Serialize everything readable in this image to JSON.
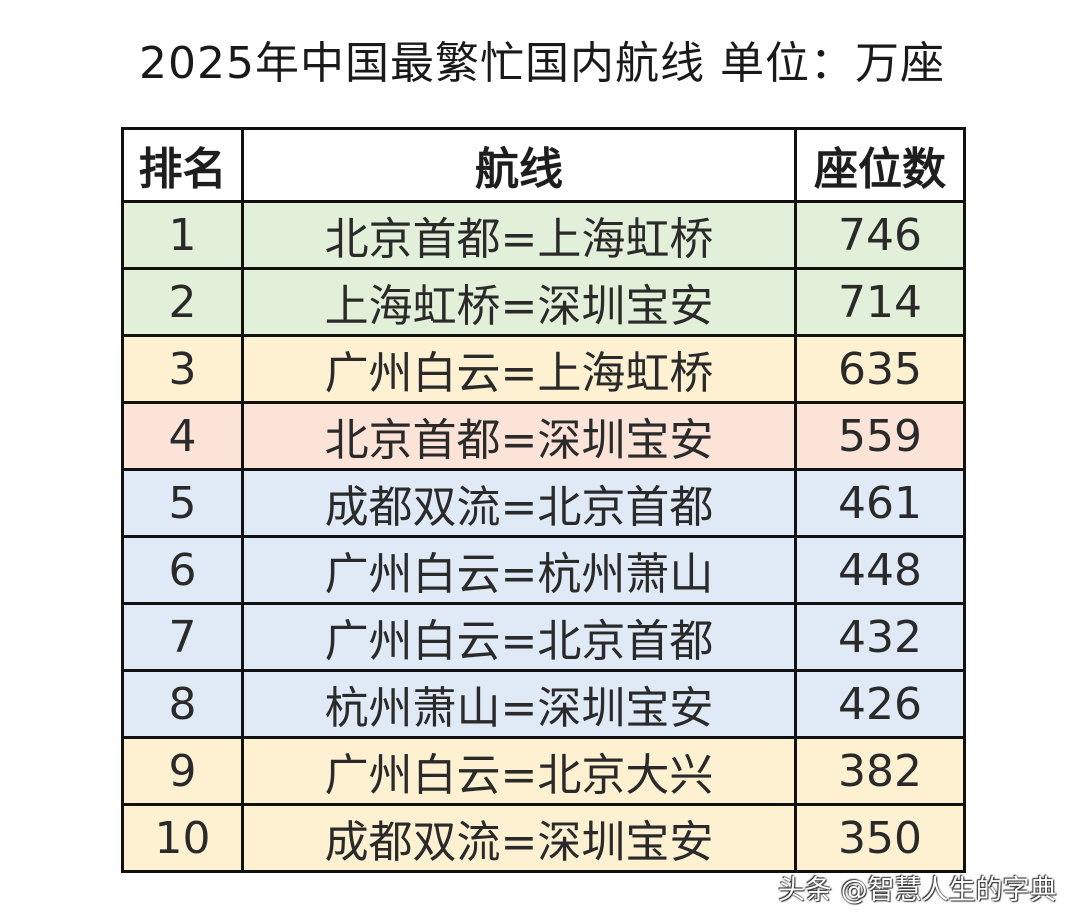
{
  "title": "2025年中国最繁忙国内航线 单位：万座",
  "table": {
    "headers": {
      "rank": "排名",
      "route": "航线",
      "seats": "座位数"
    },
    "rows": [
      {
        "rank": "1",
        "route": "北京首都=上海虹桥",
        "seats": "746",
        "color": "#e2f0da"
      },
      {
        "rank": "2",
        "route": "上海虹桥=深圳宝安",
        "seats": "714",
        "color": "#e2f0da"
      },
      {
        "rank": "3",
        "route": "广州白云=上海虹桥",
        "seats": "635",
        "color": "#fdf1d2"
      },
      {
        "rank": "4",
        "route": "北京首都=深圳宝安",
        "seats": "559",
        "color": "#fbe3d8"
      },
      {
        "rank": "5",
        "route": "成都双流=北京首都",
        "seats": "461",
        "color": "#dfeaf6"
      },
      {
        "rank": "6",
        "route": "广州白云=杭州萧山",
        "seats": "448",
        "color": "#dfeaf6"
      },
      {
        "rank": "7",
        "route": "广州白云=北京首都",
        "seats": "432",
        "color": "#dfeaf6"
      },
      {
        "rank": "8",
        "route": "杭州萧山=深圳宝安",
        "seats": "426",
        "color": "#dfeaf6"
      },
      {
        "rank": "9",
        "route": "广州白云=北京大兴",
        "seats": "382",
        "color": "#fdf1d2"
      },
      {
        "rank": "10",
        "route": "成都双流=深圳宝安",
        "seats": "350",
        "color": "#fdf1d2"
      }
    ]
  },
  "watermark": "头条 @智慧人生的字典"
}
